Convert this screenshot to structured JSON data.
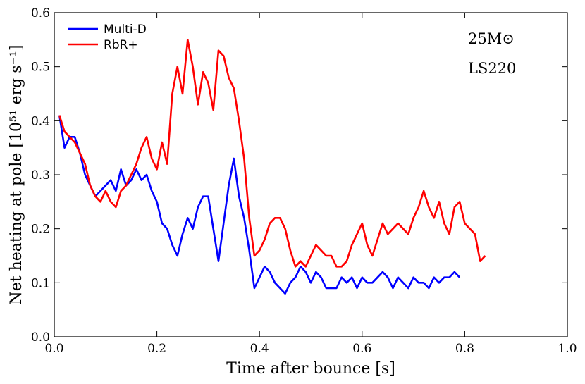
{
  "chart_data": {
    "type": "line",
    "xlabel": "Time after bounce [s]",
    "ylabel": "Net heating at pole [10⁵¹ erg s⁻¹]",
    "annotations": [
      "25M⊙",
      "LS220"
    ],
    "legend": "upper left",
    "xlim": [
      0,
      1
    ],
    "ylim": [
      0,
      0.6
    ],
    "xticks": [
      {
        "value": 0,
        "label": "0.0"
      },
      0.2,
      0.4,
      0.6,
      0.8,
      {
        "value": 1,
        "label": "1.0"
      }
    ],
    "yticks": [
      {
        "value": 0,
        "label": "0.0"
      },
      0.1,
      0.2,
      0.3,
      0.4,
      0.5,
      0.6
    ],
    "x": [
      0.01,
      0.02,
      0.03,
      0.04,
      0.05,
      0.06,
      0.07,
      0.08,
      0.09,
      0.1,
      0.11,
      0.12,
      0.13,
      0.14,
      0.15,
      0.16,
      0.17,
      0.18,
      0.19,
      0.2,
      0.21,
      0.22,
      0.23,
      0.24,
      0.25,
      0.26,
      0.27,
      0.28,
      0.29,
      0.3,
      0.31,
      0.32,
      0.33,
      0.34,
      0.35,
      0.36,
      0.37,
      0.38,
      0.39,
      0.4,
      0.41,
      0.42,
      0.43,
      0.44,
      0.45,
      0.46,
      0.47,
      0.48,
      0.49,
      0.5,
      0.51,
      0.52,
      0.53,
      0.54,
      0.55,
      0.56,
      0.57,
      0.58,
      0.59,
      0.6,
      0.61,
      0.62,
      0.63,
      0.64,
      0.65,
      0.66,
      0.67,
      0.68,
      0.69,
      0.7,
      0.71,
      0.72,
      0.73,
      0.74,
      0.75,
      0.76,
      0.77,
      0.78,
      0.79,
      0.8,
      0.81,
      0.82,
      0.83,
      0.84
    ],
    "series": [
      {
        "name": "Multi-D",
        "color": "#0000ff",
        "values": [
          0.41,
          0.35,
          0.37,
          0.37,
          0.34,
          0.3,
          0.28,
          0.26,
          0.27,
          0.28,
          0.29,
          0.27,
          0.31,
          0.28,
          0.29,
          0.31,
          0.29,
          0.3,
          0.27,
          0.25,
          0.21,
          0.2,
          0.17,
          0.15,
          0.19,
          0.22,
          0.2,
          0.24,
          0.26,
          0.26,
          0.2,
          0.14,
          0.21,
          0.28,
          0.33,
          0.26,
          0.22,
          0.16,
          0.09,
          0.11,
          0.13,
          0.12,
          0.1,
          0.09,
          0.08,
          0.1,
          0.11,
          0.13,
          0.12,
          0.1,
          0.12,
          0.11,
          0.09,
          0.09,
          0.09,
          0.11,
          0.1,
          0.11,
          0.09,
          0.11,
          0.1,
          0.1,
          0.11,
          0.12,
          0.11,
          0.09,
          0.11,
          0.1,
          0.09,
          0.11,
          0.1,
          0.1,
          0.09,
          0.11,
          0.1,
          0.11,
          0.11,
          0.12,
          0.11,
          null,
          null,
          null,
          null,
          null
        ]
      },
      {
        "name": "RbR+",
        "color": "#ff0000",
        "values": [
          0.41,
          0.38,
          0.37,
          0.36,
          0.34,
          0.32,
          0.28,
          0.26,
          0.25,
          0.27,
          0.25,
          0.24,
          0.27,
          0.28,
          0.3,
          0.32,
          0.35,
          0.37,
          0.33,
          0.31,
          0.36,
          0.32,
          0.45,
          0.5,
          0.45,
          0.55,
          0.5,
          0.43,
          0.49,
          0.47,
          0.42,
          0.53,
          0.52,
          0.48,
          0.46,
          0.4,
          0.33,
          0.22,
          0.15,
          0.16,
          0.18,
          0.21,
          0.22,
          0.22,
          0.2,
          0.16,
          0.13,
          0.14,
          0.13,
          0.15,
          0.17,
          0.16,
          0.15,
          0.15,
          0.13,
          0.13,
          0.14,
          0.17,
          0.19,
          0.21,
          0.17,
          0.15,
          0.18,
          0.21,
          0.19,
          0.2,
          0.21,
          0.2,
          0.19,
          0.22,
          0.24,
          0.27,
          0.24,
          0.22,
          0.25,
          0.21,
          0.19,
          0.24,
          0.25,
          0.21,
          0.2,
          0.19,
          0.14,
          0.15
        ]
      }
    ]
  }
}
